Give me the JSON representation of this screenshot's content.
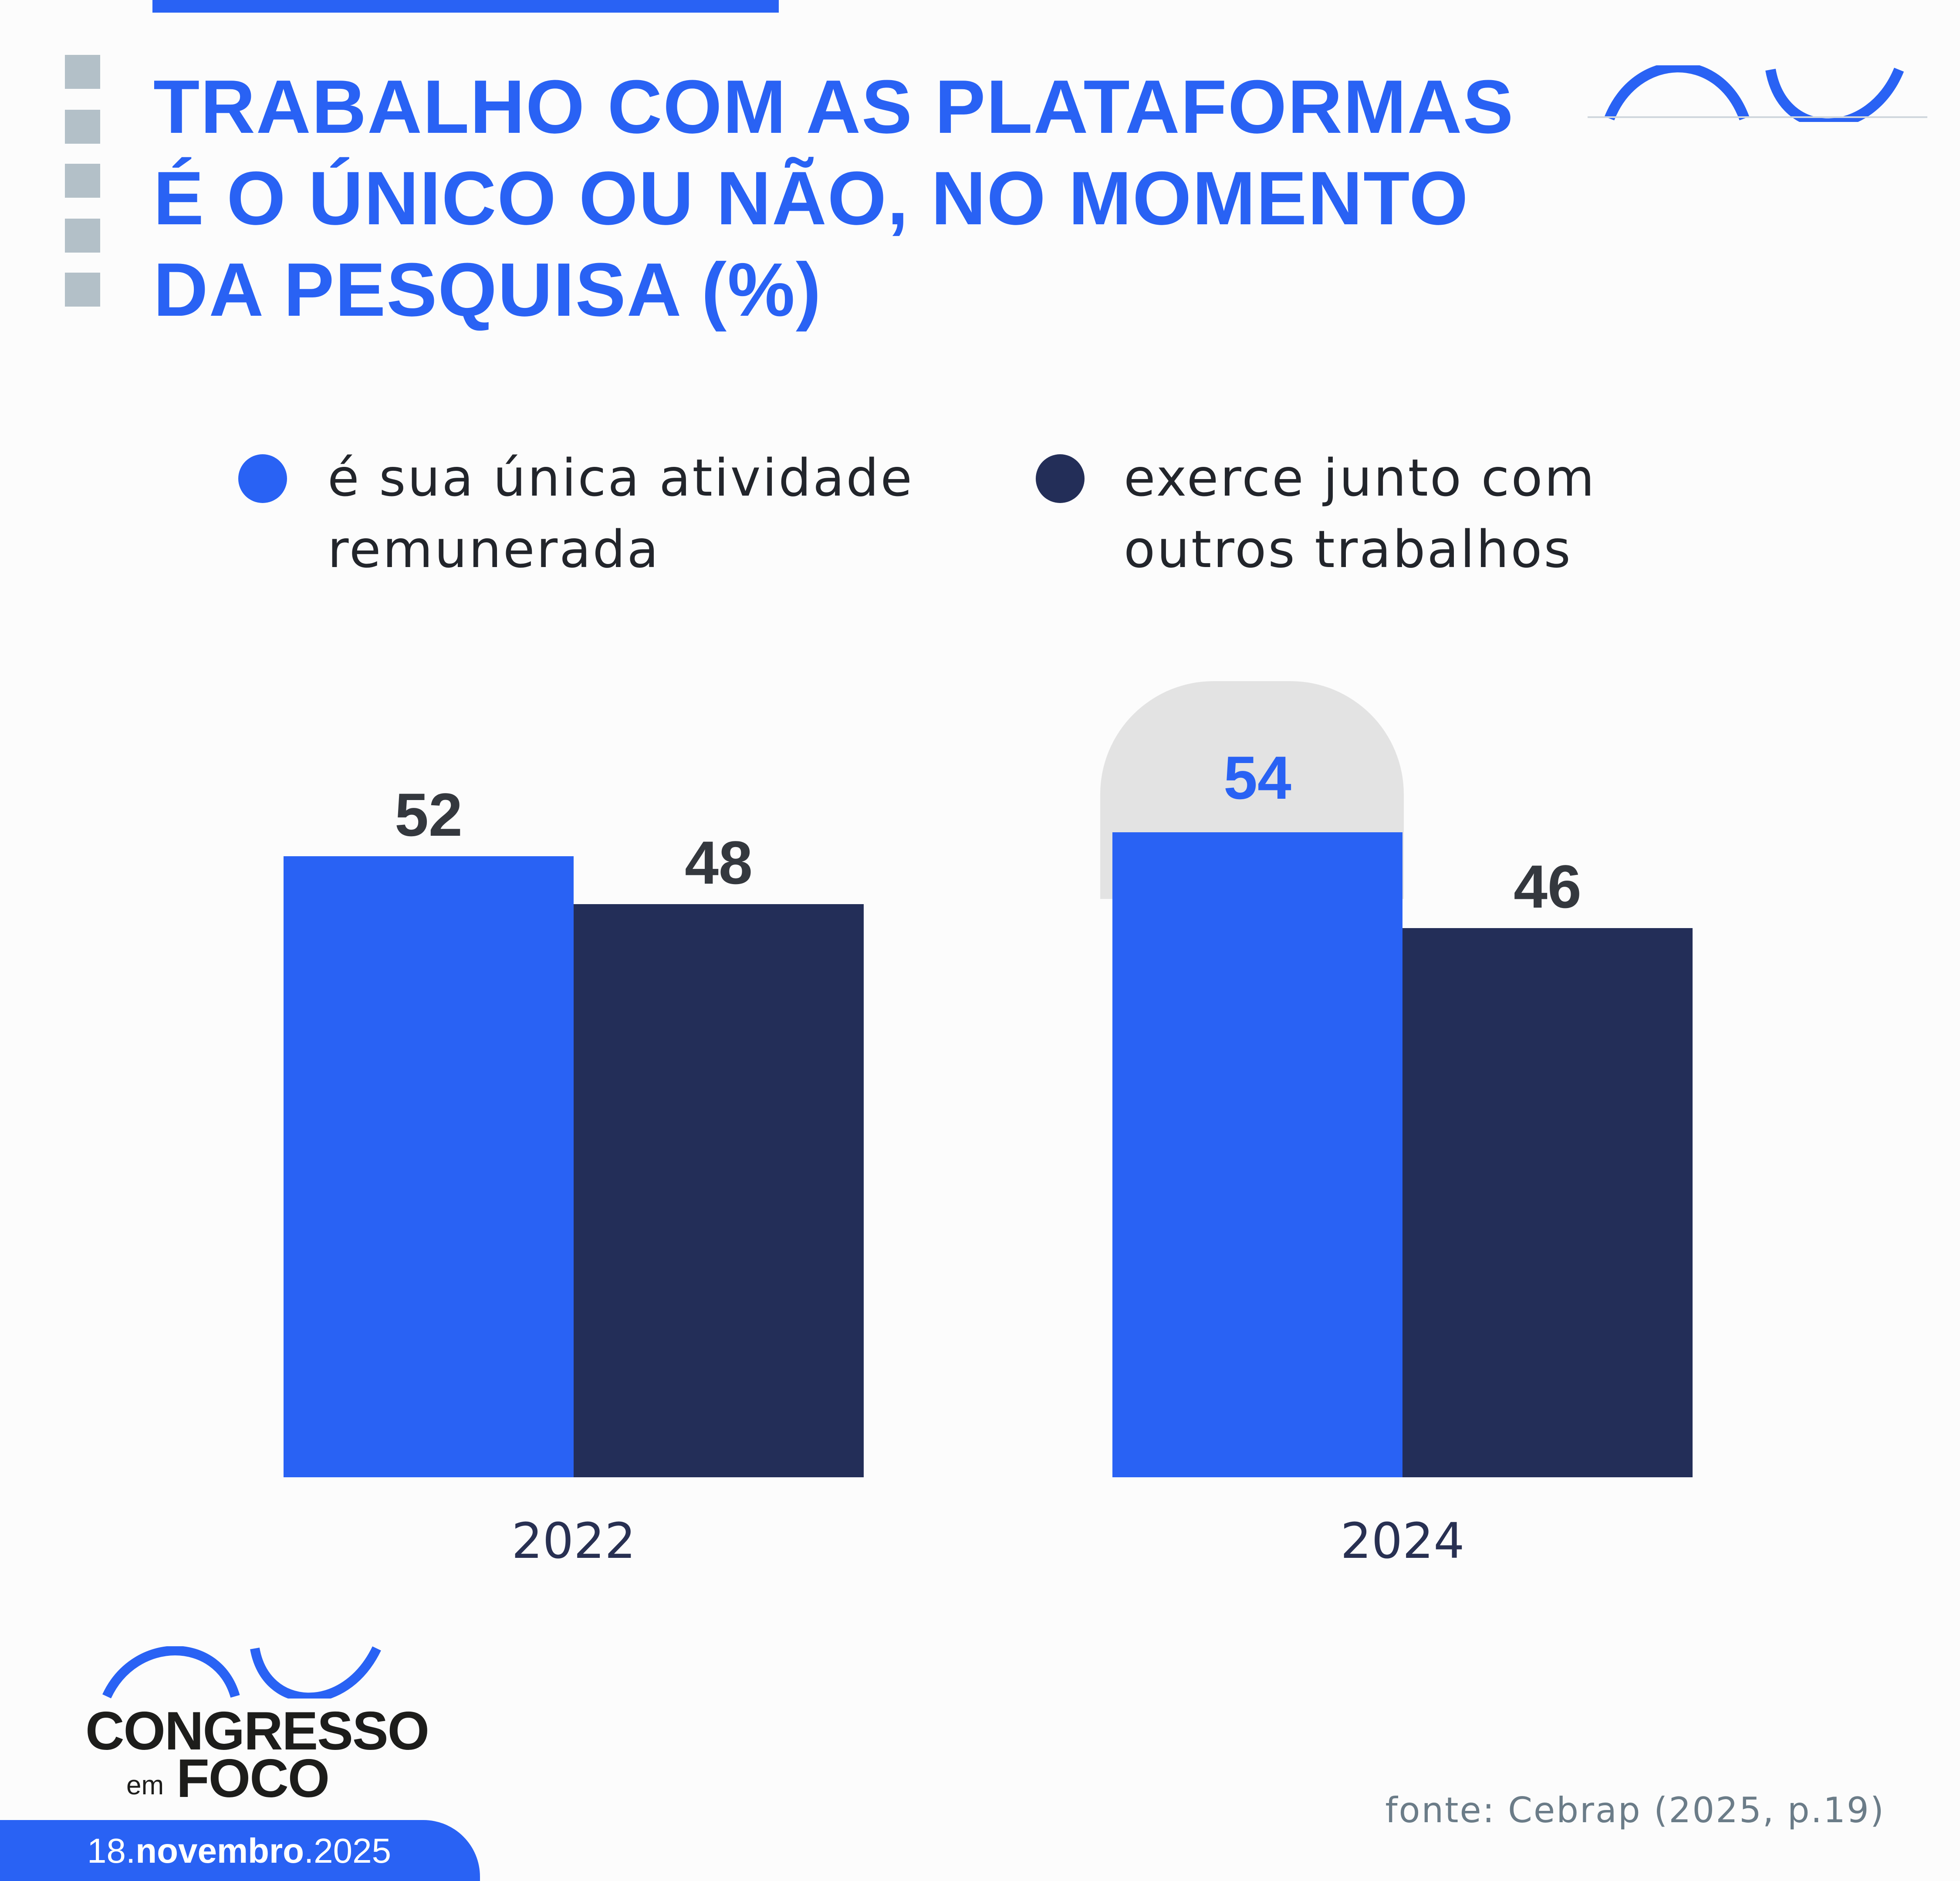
{
  "title": {
    "lines": [
      "TRABALHO COM AS PLATAFORMAS",
      "É O ÚNICO OU NÃO, NO MOMENTO",
      "DA PESQUISA (%)"
    ]
  },
  "colors": {
    "accent": "#2962f4",
    "dark": "#232e58",
    "highlight": "#e3e3e3",
    "squares": "#b3c0c8"
  },
  "chart_data": {
    "type": "bar",
    "title": "TRABALHO COM AS PLATAFORMAS É O ÚNICO OU NÃO, NO MOMENTO DA PESQUISA (%)",
    "categories": [
      "2022",
      "2024"
    ],
    "series": [
      {
        "name": "é sua única atividade remunerada",
        "name_lines": [
          "é sua única atividade",
          "remunerada"
        ],
        "color": "#2962f4",
        "values": [
          52,
          54
        ]
      },
      {
        "name": "exerce junto com outros trabalhos",
        "name_lines": [
          "exerce junto com",
          "outros trabalhos"
        ],
        "color": "#232e58",
        "values": [
          48,
          46
        ]
      }
    ],
    "highlighted": {
      "series": 0,
      "category": 1
    },
    "ylim": [
      0,
      100
    ],
    "xlabel": "",
    "ylabel": "",
    "grid": false,
    "legend_position": "top"
  },
  "footer": {
    "source": "fonte: Cebrap (2025, p.19)",
    "brand_line1": "CONGRESSO",
    "brand_em": "em",
    "brand_line2": "FOCO",
    "date_day": "18.",
    "date_month": "novembro",
    "date_year": ".2025"
  }
}
